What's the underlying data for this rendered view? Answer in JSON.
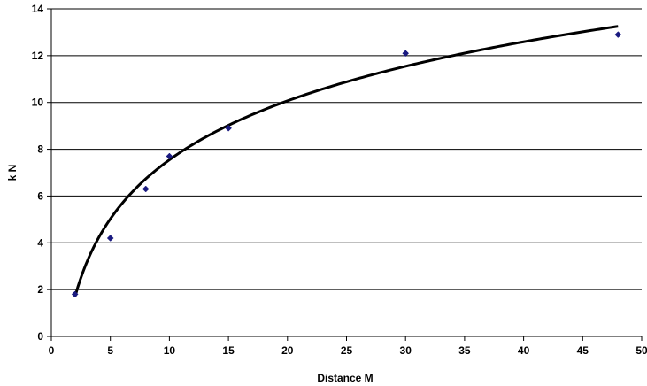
{
  "chart_data": {
    "type": "scatter",
    "title": "",
    "xlabel": "Distance M",
    "ylabel": "k N",
    "xlim": [
      0,
      50
    ],
    "ylim": [
      0,
      14
    ],
    "x_ticks": [
      "0",
      "5",
      "10",
      "15",
      "20",
      "25",
      "30",
      "35",
      "40",
      "45",
      "50"
    ],
    "y_ticks": [
      "0",
      "2",
      "4",
      "6",
      "8",
      "10",
      "12",
      "14"
    ],
    "grid": "horizontal",
    "legend": "none",
    "series": [
      {
        "kind": "points",
        "marker": "diamond",
        "color": "#1a1a80",
        "points": [
          {
            "x": 2,
            "y": 1.8
          },
          {
            "x": 5,
            "y": 4.2
          },
          {
            "x": 8,
            "y": 6.3
          },
          {
            "x": 10,
            "y": 7.7
          },
          {
            "x": 15,
            "y": 8.9
          },
          {
            "x": 30,
            "y": 12.1
          },
          {
            "x": 48,
            "y": 12.9
          }
        ]
      },
      {
        "kind": "trendline",
        "model": "logarithmic",
        "color": "#000000",
        "x_range": [
          2,
          48
        ],
        "curve": [
          {
            "x": 2,
            "y": 1.45
          },
          {
            "x": 5,
            "y": 5.3
          },
          {
            "x": 10,
            "y": 7.7
          },
          {
            "x": 15,
            "y": 9.0
          },
          {
            "x": 20,
            "y": 10.0
          },
          {
            "x": 30,
            "y": 11.5
          },
          {
            "x": 48,
            "y": 13.2
          }
        ]
      }
    ]
  }
}
